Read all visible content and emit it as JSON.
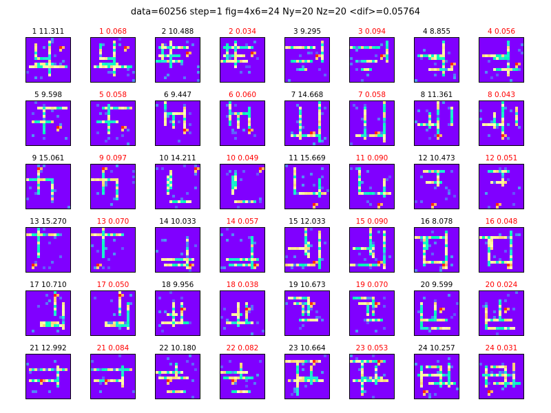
{
  "title": "data=60256 step=1 fig=4x6=24 Ny=20 Nz=20 <dif>=0.05764",
  "colors": {
    "background": "#8000ff",
    "error_title": "#ff0000",
    "value_title": "#000000"
  },
  "chart_data": {
    "type": "heatmap",
    "layout": {
      "rows": 6,
      "cols": 8
    },
    "colormap": "rainbow",
    "Ny": 20,
    "Nz": 20,
    "panels": [
      {
        "label": "1 11.311",
        "kind": "value"
      },
      {
        "label": "1 0.068",
        "kind": "dif"
      },
      {
        "label": "2 10.488",
        "kind": "value"
      },
      {
        "label": "2 0.034",
        "kind": "dif"
      },
      {
        "label": "3 9.295",
        "kind": "value"
      },
      {
        "label": "3 0.094",
        "kind": "dif"
      },
      {
        "label": "4 8.855",
        "kind": "value"
      },
      {
        "label": "4 0.056",
        "kind": "dif"
      },
      {
        "label": "5 9.598",
        "kind": "value"
      },
      {
        "label": "5 0.058",
        "kind": "dif"
      },
      {
        "label": "6 9.447",
        "kind": "value"
      },
      {
        "label": "6 0.060",
        "kind": "dif"
      },
      {
        "label": "7 14.668",
        "kind": "value"
      },
      {
        "label": "7 0.058",
        "kind": "dif"
      },
      {
        "label": "8 11.361",
        "kind": "value"
      },
      {
        "label": "8 0.043",
        "kind": "dif"
      },
      {
        "label": "9 15.061",
        "kind": "value"
      },
      {
        "label": "9 0.097",
        "kind": "dif"
      },
      {
        "label": "10 14.211",
        "kind": "value"
      },
      {
        "label": "10 0.049",
        "kind": "dif"
      },
      {
        "label": "11 15.669",
        "kind": "value"
      },
      {
        "label": "11 0.090",
        "kind": "dif"
      },
      {
        "label": "12 10.473",
        "kind": "value"
      },
      {
        "label": "12 0.051",
        "kind": "dif"
      },
      {
        "label": "13 15.270",
        "kind": "value"
      },
      {
        "label": "13 0.070",
        "kind": "dif"
      },
      {
        "label": "14 10.033",
        "kind": "value"
      },
      {
        "label": "14 0.057",
        "kind": "dif"
      },
      {
        "label": "15 12.033",
        "kind": "value"
      },
      {
        "label": "15 0.090",
        "kind": "dif"
      },
      {
        "label": "16 8.078",
        "kind": "value"
      },
      {
        "label": "16 0.048",
        "kind": "dif"
      },
      {
        "label": "17 10.710",
        "kind": "value"
      },
      {
        "label": "17 0.050",
        "kind": "dif"
      },
      {
        "label": "18 9.956",
        "kind": "value"
      },
      {
        "label": "18 0.038",
        "kind": "dif"
      },
      {
        "label": "19 10.673",
        "kind": "value"
      },
      {
        "label": "19 0.070",
        "kind": "dif"
      },
      {
        "label": "20 9.599",
        "kind": "value"
      },
      {
        "label": "20 0.024",
        "kind": "dif"
      },
      {
        "label": "21 12.992",
        "kind": "value"
      },
      {
        "label": "21 0.084",
        "kind": "dif"
      },
      {
        "label": "22 10.180",
        "kind": "value"
      },
      {
        "label": "22 0.082",
        "kind": "dif"
      },
      {
        "label": "23 10.664",
        "kind": "value"
      },
      {
        "label": "23 0.053",
        "kind": "dif"
      },
      {
        "label": "24 10.257",
        "kind": "value"
      },
      {
        "label": "24 0.031",
        "kind": "dif"
      }
    ]
  }
}
